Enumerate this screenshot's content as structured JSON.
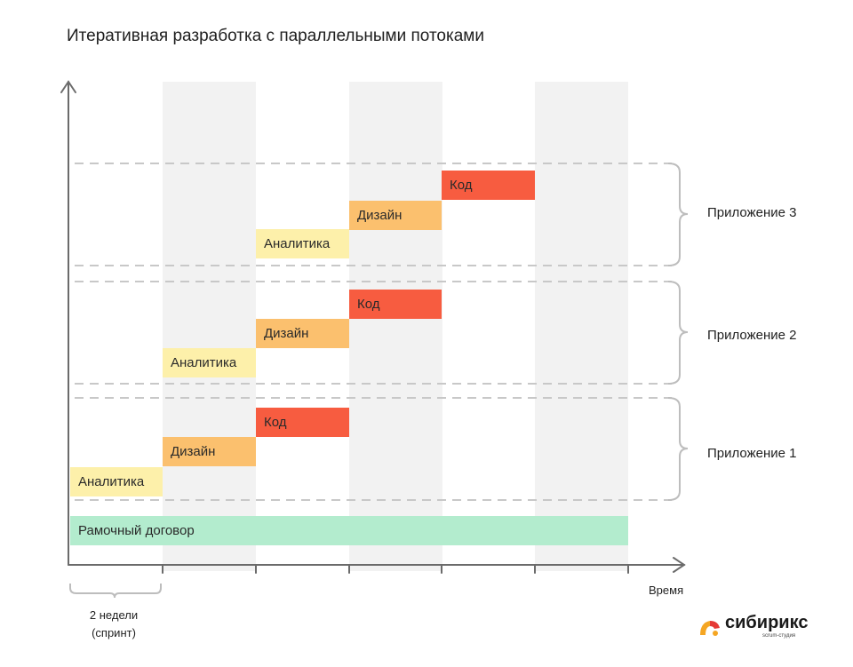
{
  "title": "Итеративная разработка с параллельными потоками",
  "labels": {
    "analytics": "Аналитика",
    "design": "Дизайн",
    "code": "Код"
  },
  "apps": [
    "Приложение 1",
    "Приложение 2",
    "Приложение 3"
  ],
  "framework": "Рамочный договор",
  "axis": {
    "x_label": "Время"
  },
  "sprint_note": {
    "line1": "2 недели",
    "line2": "(спринт)"
  },
  "logo": {
    "name": "сибирикс",
    "subtitle": "scrum-студия"
  },
  "colors": {
    "analytics": "#fdf0aa",
    "design": "#fbc06e",
    "code": "#f75c40",
    "framework": "#b3ecce",
    "sprint_band": "#f2f2f2",
    "axis": "#6b6b6b",
    "dashed": "#c8c8c8"
  }
}
